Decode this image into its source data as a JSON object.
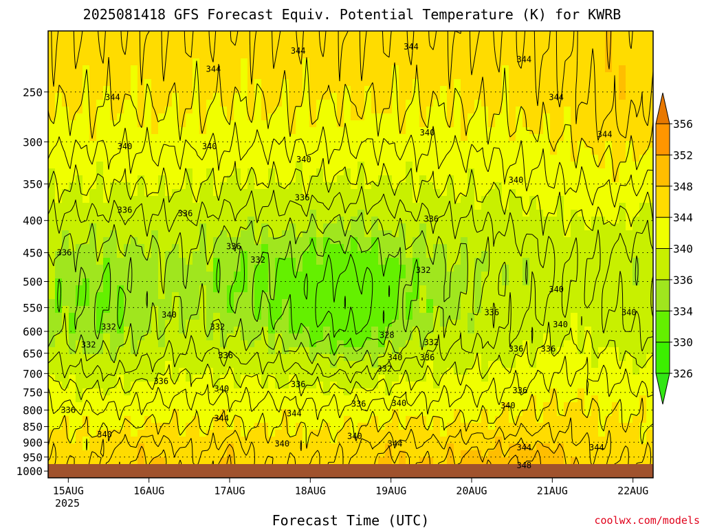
{
  "chart_data": {
    "type": "heatmap",
    "title": "2025081418 GFS Forecast Equiv. Potential Temperature (K) for KWRB",
    "xlabel": "Forecast Time (UTC)",
    "ylabel": "",
    "credit": "coolwx.com/models",
    "x_ticks": [
      "15AUG",
      "16AUG",
      "17AUG",
      "18AUG",
      "19AUG",
      "20AUG",
      "21AUG",
      "22AUG"
    ],
    "x_year": "2025",
    "x_range_days": [
      14.75,
      22.25
    ],
    "y_ticks": [
      250,
      300,
      350,
      400,
      450,
      500,
      550,
      600,
      650,
      700,
      750,
      800,
      850,
      900,
      950,
      1000
    ],
    "y_range_hpa": [
      200,
      1025
    ],
    "colorbar": {
      "levels": [
        326,
        330,
        334,
        336,
        340,
        344,
        348,
        352,
        356
      ],
      "colors": [
        "#32e614",
        "#3cf000",
        "#64f000",
        "#a0e61e",
        "#c8f000",
        "#f0ff00",
        "#ffdc00",
        "#ffbe00",
        "#ff9600",
        "#e87800"
      ]
    },
    "ground_color": "#a0522d",
    "contour_labels": [
      {
        "t": 15.0,
        "p": 800,
        "v": "336"
      },
      {
        "t": 14.95,
        "p": 450,
        "v": "336"
      },
      {
        "t": 15.25,
        "p": 630,
        "v": "332"
      },
      {
        "t": 15.45,
        "p": 875,
        "v": "340"
      },
      {
        "t": 15.5,
        "p": 590,
        "v": "332"
      },
      {
        "t": 15.55,
        "p": 255,
        "v": "344"
      },
      {
        "t": 15.7,
        "p": 305,
        "v": "340"
      },
      {
        "t": 15.7,
        "p": 385,
        "v": "336"
      },
      {
        "t": 16.15,
        "p": 720,
        "v": "336"
      },
      {
        "t": 16.25,
        "p": 565,
        "v": "340"
      },
      {
        "t": 16.45,
        "p": 390,
        "v": "336"
      },
      {
        "t": 16.8,
        "p": 230,
        "v": "344"
      },
      {
        "t": 16.75,
        "p": 305,
        "v": "340"
      },
      {
        "t": 16.85,
        "p": 590,
        "v": "332"
      },
      {
        "t": 16.95,
        "p": 655,
        "v": "336"
      },
      {
        "t": 16.9,
        "p": 740,
        "v": "340"
      },
      {
        "t": 16.9,
        "p": 825,
        "v": "344"
      },
      {
        "t": 17.05,
        "p": 440,
        "v": "336"
      },
      {
        "t": 17.35,
        "p": 462,
        "v": "332"
      },
      {
        "t": 17.65,
        "p": 905,
        "v": "340"
      },
      {
        "t": 17.8,
        "p": 810,
        "v": "344"
      },
      {
        "t": 17.85,
        "p": 728,
        "v": "336"
      },
      {
        "t": 17.92,
        "p": 320,
        "v": "340"
      },
      {
        "t": 17.9,
        "p": 368,
        "v": "336"
      },
      {
        "t": 17.85,
        "p": 215,
        "v": "344"
      },
      {
        "t": 18.55,
        "p": 880,
        "v": "340"
      },
      {
        "t": 18.6,
        "p": 782,
        "v": "336"
      },
      {
        "t": 18.95,
        "p": 608,
        "v": "328"
      },
      {
        "t": 18.92,
        "p": 688,
        "v": "332"
      },
      {
        "t": 19.05,
        "p": 660,
        "v": "340"
      },
      {
        "t": 19.05,
        "p": 905,
        "v": "344"
      },
      {
        "t": 19.1,
        "p": 780,
        "v": "340"
      },
      {
        "t": 19.25,
        "p": 212,
        "v": "344"
      },
      {
        "t": 19.45,
        "p": 290,
        "v": "340"
      },
      {
        "t": 19.5,
        "p": 398,
        "v": "336"
      },
      {
        "t": 19.4,
        "p": 480,
        "v": "332"
      },
      {
        "t": 19.5,
        "p": 625,
        "v": "332"
      },
      {
        "t": 19.45,
        "p": 660,
        "v": "336"
      },
      {
        "t": 20.25,
        "p": 560,
        "v": "336"
      },
      {
        "t": 20.45,
        "p": 787,
        "v": "340"
      },
      {
        "t": 20.55,
        "p": 345,
        "v": "340"
      },
      {
        "t": 20.65,
        "p": 918,
        "v": "344"
      },
      {
        "t": 20.65,
        "p": 980,
        "v": "348"
      },
      {
        "t": 20.55,
        "p": 640,
        "v": "336"
      },
      {
        "t": 20.6,
        "p": 745,
        "v": "336"
      },
      {
        "t": 20.65,
        "p": 222,
        "v": "344"
      },
      {
        "t": 20.95,
        "p": 640,
        "v": "336"
      },
      {
        "t": 21.1,
        "p": 585,
        "v": "340"
      },
      {
        "t": 21.05,
        "p": 515,
        "v": "340"
      },
      {
        "t": 21.05,
        "p": 255,
        "v": "344"
      },
      {
        "t": 21.65,
        "p": 292,
        "v": "344"
      },
      {
        "t": 21.55,
        "p": 918,
        "v": "344"
      },
      {
        "t": 21.95,
        "p": 560,
        "v": "340"
      }
    ]
  }
}
